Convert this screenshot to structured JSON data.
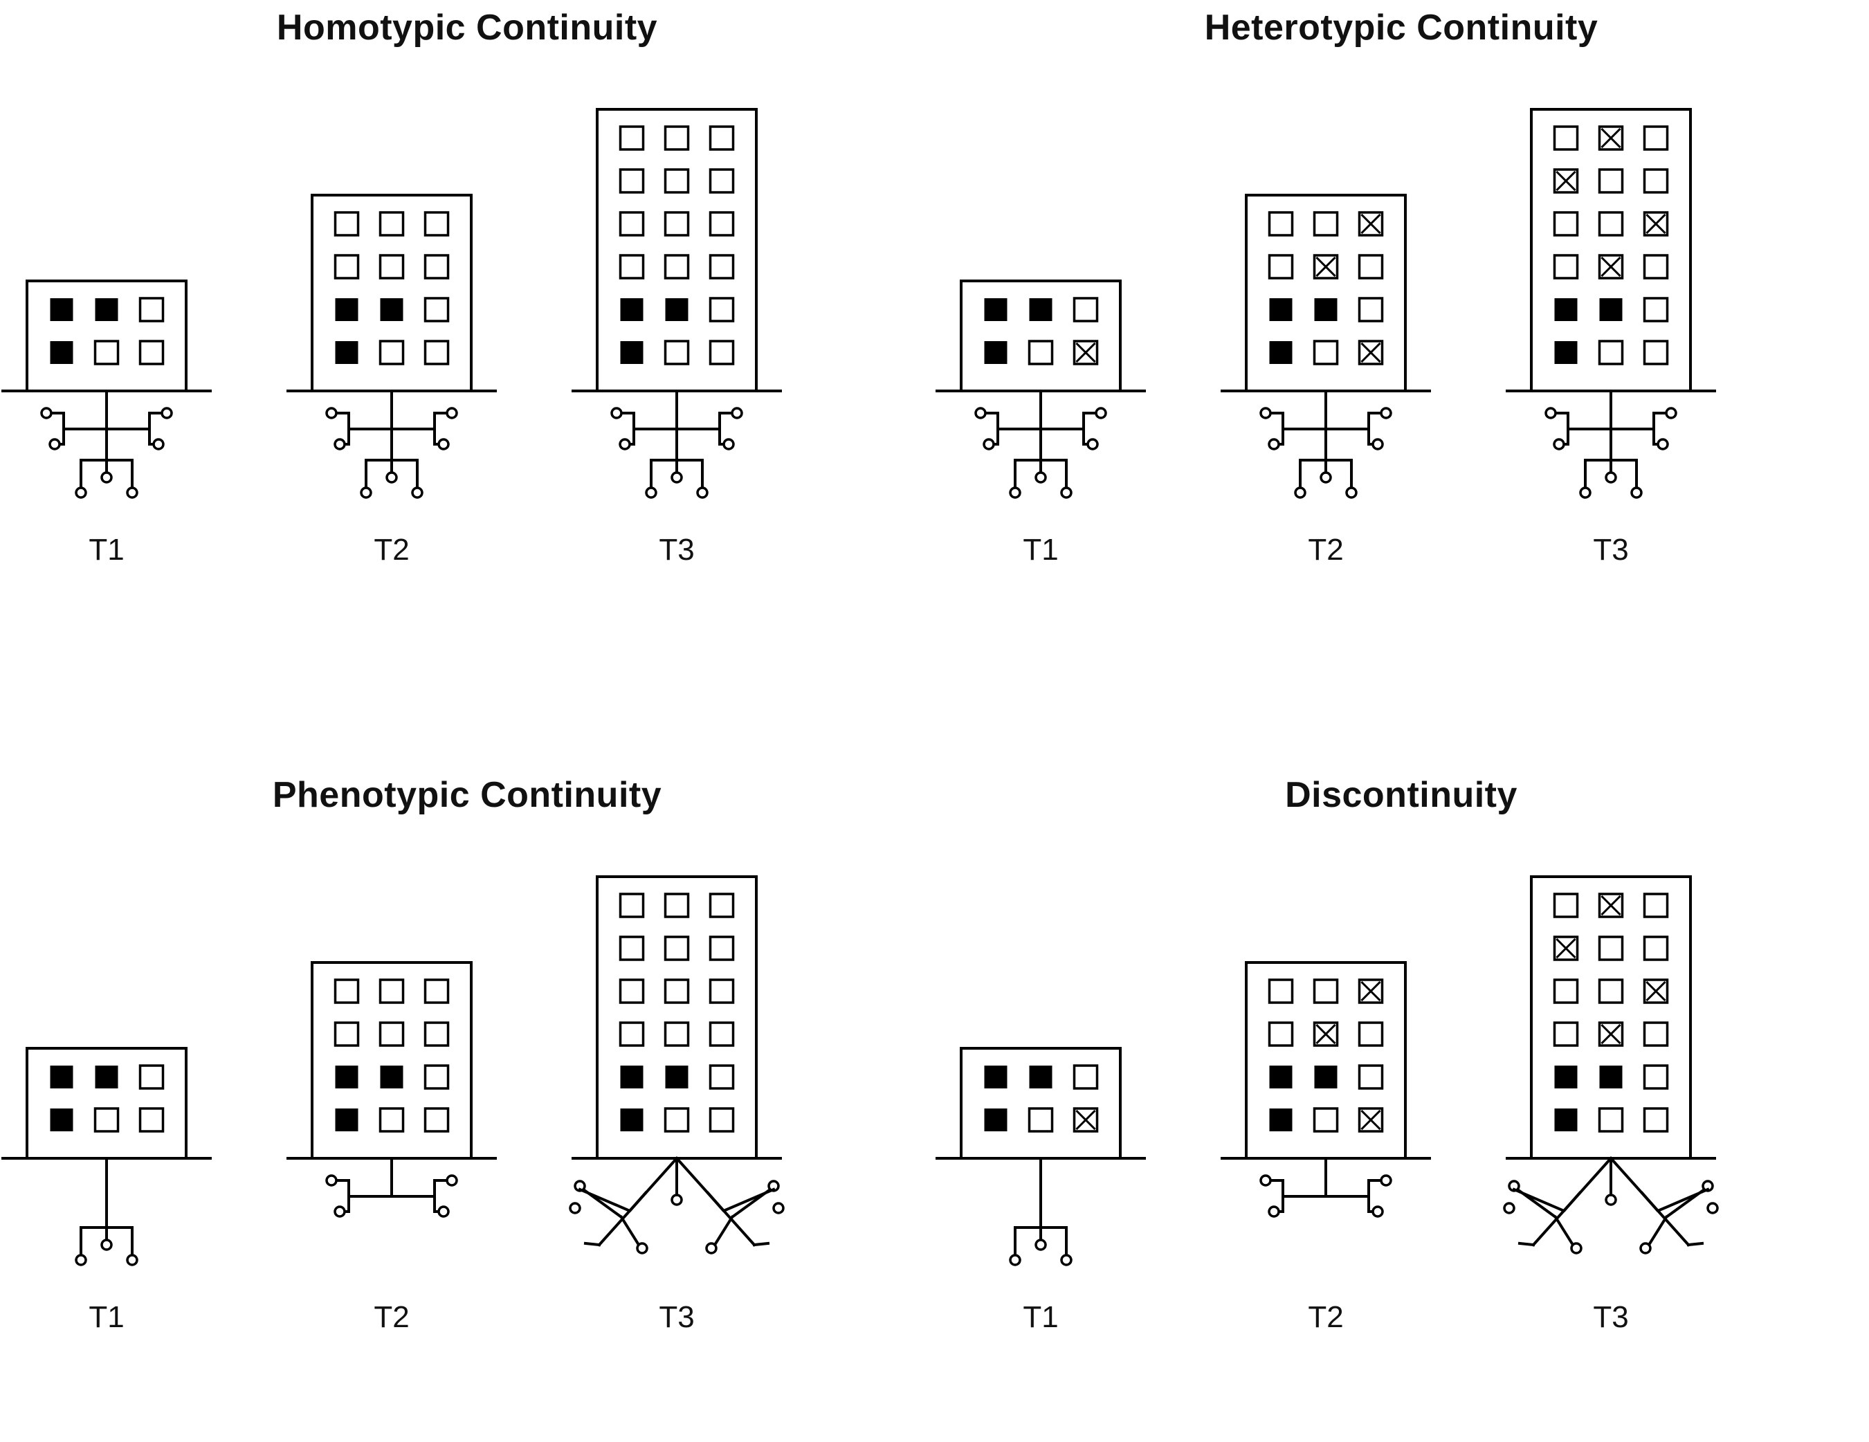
{
  "colors": {
    "ink": "#000000",
    "background": "#ffffff"
  },
  "window_states": {
    "filled": "developed",
    "empty": "open",
    "crossed": "lost"
  },
  "panels": [
    {
      "id": "homotypic",
      "title": "Homotypic Continuity",
      "stages": [
        {
          "label": "T1",
          "floors": [
            [
              "filled",
              "filled",
              "empty"
            ],
            [
              "filled",
              "empty",
              "empty"
            ]
          ],
          "roots": "full"
        },
        {
          "label": "T2",
          "floors": [
            [
              "empty",
              "empty",
              "empty"
            ],
            [
              "empty",
              "empty",
              "empty"
            ],
            [
              "filled",
              "filled",
              "empty"
            ],
            [
              "filled",
              "empty",
              "empty"
            ]
          ],
          "roots": "full"
        },
        {
          "label": "T3",
          "floors": [
            [
              "empty",
              "empty",
              "empty"
            ],
            [
              "empty",
              "empty",
              "empty"
            ],
            [
              "empty",
              "empty",
              "empty"
            ],
            [
              "empty",
              "empty",
              "empty"
            ],
            [
              "filled",
              "filled",
              "empty"
            ],
            [
              "filled",
              "empty",
              "empty"
            ]
          ],
          "roots": "full"
        }
      ]
    },
    {
      "id": "heterotypic",
      "title": "Heterotypic Continuity",
      "stages": [
        {
          "label": "T1",
          "floors": [
            [
              "filled",
              "filled",
              "empty"
            ],
            [
              "filled",
              "empty",
              "crossed"
            ]
          ],
          "roots": "full"
        },
        {
          "label": "T2",
          "floors": [
            [
              "empty",
              "empty",
              "crossed"
            ],
            [
              "empty",
              "crossed",
              "empty"
            ],
            [
              "filled",
              "filled",
              "empty"
            ],
            [
              "filled",
              "empty",
              "crossed"
            ]
          ],
          "roots": "full"
        },
        {
          "label": "T3",
          "floors": [
            [
              "empty",
              "crossed",
              "empty"
            ],
            [
              "crossed",
              "empty",
              "empty"
            ],
            [
              "empty",
              "empty",
              "crossed"
            ],
            [
              "empty",
              "crossed",
              "empty"
            ],
            [
              "filled",
              "filled",
              "empty"
            ],
            [
              "filled",
              "empty",
              "empty"
            ]
          ],
          "roots": "full"
        }
      ]
    },
    {
      "id": "phenotypic",
      "title": "Phenotypic Continuity",
      "stages": [
        {
          "label": "T1",
          "floors": [
            [
              "filled",
              "filled",
              "empty"
            ],
            [
              "filled",
              "empty",
              "empty"
            ]
          ],
          "roots": "lower"
        },
        {
          "label": "T2",
          "floors": [
            [
              "empty",
              "empty",
              "empty"
            ],
            [
              "empty",
              "empty",
              "empty"
            ],
            [
              "filled",
              "filled",
              "empty"
            ],
            [
              "filled",
              "empty",
              "empty"
            ]
          ],
          "roots": "upper"
        },
        {
          "label": "T3",
          "floors": [
            [
              "empty",
              "empty",
              "empty"
            ],
            [
              "empty",
              "empty",
              "empty"
            ],
            [
              "empty",
              "empty",
              "empty"
            ],
            [
              "empty",
              "empty",
              "empty"
            ],
            [
              "filled",
              "filled",
              "empty"
            ],
            [
              "filled",
              "empty",
              "empty"
            ]
          ],
          "roots": "diagonal"
        }
      ]
    },
    {
      "id": "discontinuity",
      "title": "Discontinuity",
      "stages": [
        {
          "label": "T1",
          "floors": [
            [
              "filled",
              "filled",
              "empty"
            ],
            [
              "filled",
              "empty",
              "crossed"
            ]
          ],
          "roots": "lower"
        },
        {
          "label": "T2",
          "floors": [
            [
              "empty",
              "empty",
              "crossed"
            ],
            [
              "empty",
              "crossed",
              "empty"
            ],
            [
              "filled",
              "filled",
              "empty"
            ],
            [
              "filled",
              "empty",
              "crossed"
            ]
          ],
          "roots": "upper"
        },
        {
          "label": "T3",
          "floors": [
            [
              "empty",
              "crossed",
              "empty"
            ],
            [
              "crossed",
              "empty",
              "empty"
            ],
            [
              "empty",
              "empty",
              "crossed"
            ],
            [
              "empty",
              "crossed",
              "empty"
            ],
            [
              "filled",
              "filled",
              "empty"
            ],
            [
              "filled",
              "empty",
              "empty"
            ]
          ],
          "roots": "diagonal"
        }
      ]
    }
  ]
}
